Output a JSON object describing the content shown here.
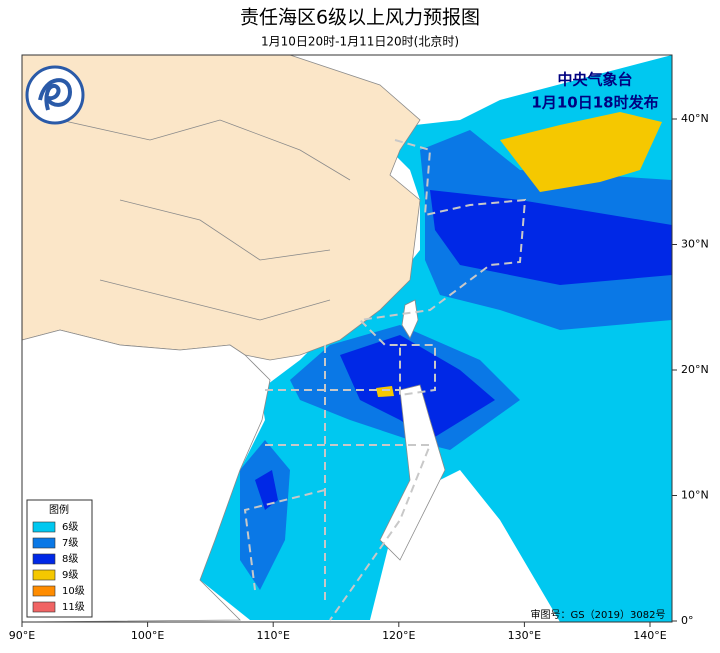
{
  "header": {
    "title": "责任海区6级以上风力预报图",
    "subtitle": "1月10日20时-1月11日20时(北京时)"
  },
  "issuer": {
    "name": "中央气象台",
    "issued": "1月10日18时发布"
  },
  "legend": {
    "title": "图例",
    "items": [
      {
        "label": "6级",
        "color": "#00c8f0"
      },
      {
        "label": "7级",
        "color": "#0a78e6"
      },
      {
        "label": "8级",
        "color": "#0028e6"
      },
      {
        "label": "9级",
        "color": "#f5c800"
      },
      {
        "label": "10级",
        "color": "#ff8c00"
      },
      {
        "label": "11级",
        "color": "#f06464"
      }
    ]
  },
  "axes": {
    "lon_labels": [
      "90°E",
      "100°E",
      "110°E",
      "120°E",
      "130°E",
      "140°E"
    ],
    "lat_labels": [
      "40°N",
      "30°N",
      "20°N",
      "10°N",
      "0°"
    ]
  },
  "approval": "审图号：GS（2019）3082号"
}
